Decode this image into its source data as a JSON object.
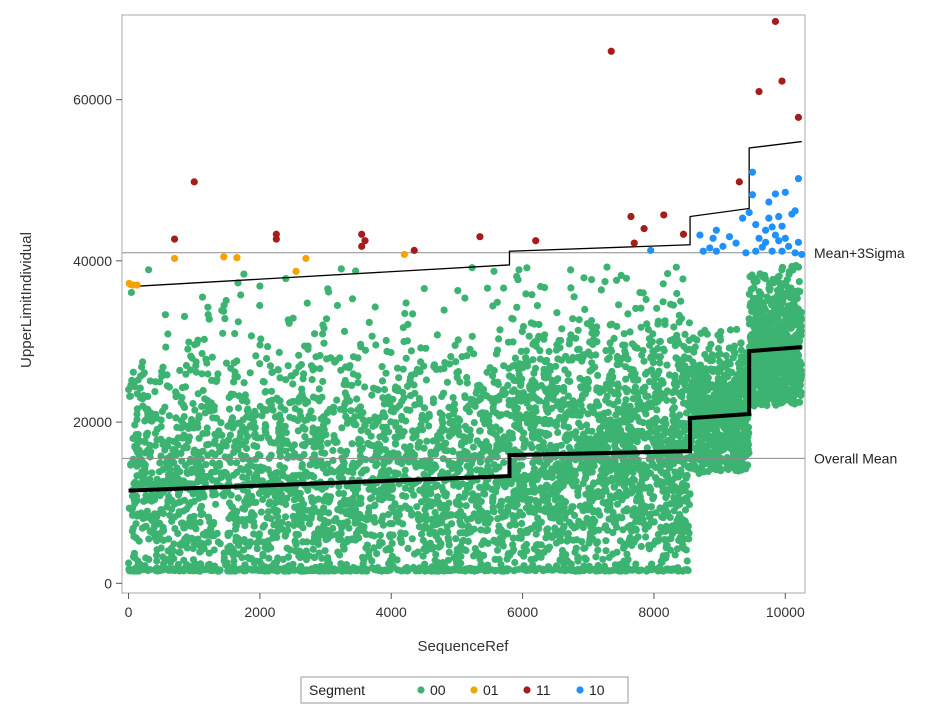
{
  "chart_data": {
    "type": "scatter",
    "xlabel": "SequenceRef",
    "ylabel": "UpperLimitIndividual",
    "xlim": [
      -100,
      10300
    ],
    "ylim": [
      -1200,
      70500
    ],
    "x_ticks": [
      0,
      2000,
      4000,
      6000,
      8000,
      10000
    ],
    "x_tick_labels": [
      "0",
      "2000",
      "4000",
      "6000",
      "8000",
      "10000"
    ],
    "y_ticks": [
      0,
      20000,
      40000,
      60000
    ],
    "y_tick_labels": [
      "0",
      "20000",
      "40000",
      "60000"
    ],
    "grid": false,
    "reference_lines": [
      {
        "label": "Mean+3Sigma",
        "y": 41000
      },
      {
        "label": "Overall Mean",
        "y": 15500
      }
    ],
    "legend": {
      "title": "Segment",
      "placement": "bottom",
      "entries": [
        {
          "name": "00",
          "color": "#3cb371"
        },
        {
          "name": "01",
          "color": "#f5a300"
        },
        {
          "name": "11",
          "color": "#a51c1c"
        },
        {
          "name": "10",
          "color": "#1e90ff"
        }
      ]
    },
    "phases": [
      {
        "x": [
          0,
          5800
        ],
        "mean_start": 11500,
        "mean_end": 13300,
        "upper_start": 36800,
        "upper_end": 39500,
        "y_max": 39500
      },
      {
        "x": [
          5800,
          8550
        ],
        "mean_start": 15900,
        "mean_end": 16400,
        "upper_start": 41200,
        "upper_end": 42000,
        "y_max": 39500
      },
      {
        "x": [
          8550,
          9450
        ],
        "mean_start": 20500,
        "mean_end": 21000,
        "upper_start": 45500,
        "upper_end": 46500,
        "y_max": 40500
      },
      {
        "x": [
          9450,
          10250
        ],
        "mean_start": 28800,
        "mean_end": 29300,
        "upper_start": 54000,
        "upper_end": 54800,
        "y_max": 40000
      }
    ],
    "series": [
      {
        "name": "01",
        "color": "#f5a300",
        "points": [
          [
            10,
            37200
          ],
          [
            70,
            37000
          ],
          [
            130,
            37000
          ],
          [
            700,
            40300
          ],
          [
            1450,
            40500
          ],
          [
            1650,
            40400
          ],
          [
            2550,
            38700
          ],
          [
            2700,
            40300
          ],
          [
            4200,
            40800
          ]
        ]
      },
      {
        "name": "11",
        "color": "#a51c1c",
        "points": [
          [
            700,
            42700
          ],
          [
            1000,
            49800
          ],
          [
            2250,
            43300
          ],
          [
            2250,
            42700
          ],
          [
            3550,
            43300
          ],
          [
            3550,
            41800
          ],
          [
            3600,
            42500
          ],
          [
            4350,
            41300
          ],
          [
            5350,
            43000
          ],
          [
            6200,
            42500
          ],
          [
            7350,
            66000
          ],
          [
            7650,
            45500
          ],
          [
            7700,
            42200
          ],
          [
            7850,
            44000
          ],
          [
            8150,
            45700
          ],
          [
            8450,
            43300
          ],
          [
            9300,
            49800
          ],
          [
            9600,
            61000
          ],
          [
            9850,
            69700
          ],
          [
            9950,
            62300
          ],
          [
            10200,
            57800
          ]
        ]
      },
      {
        "name": "10",
        "color": "#1e90ff",
        "points": [
          [
            7950,
            41300
          ],
          [
            8700,
            43200
          ],
          [
            8750,
            41200
          ],
          [
            8850,
            41600
          ],
          [
            8900,
            42800
          ],
          [
            8950,
            43800
          ],
          [
            8950,
            41200
          ],
          [
            9050,
            41800
          ],
          [
            9150,
            43000
          ],
          [
            9250,
            42200
          ],
          [
            9350,
            45300
          ],
          [
            9400,
            41000
          ],
          [
            9450,
            46000
          ],
          [
            9500,
            51000
          ],
          [
            9500,
            48200
          ],
          [
            9550,
            44500
          ],
          [
            9550,
            41200
          ],
          [
            9600,
            42800
          ],
          [
            9650,
            41700
          ],
          [
            9700,
            43800
          ],
          [
            9700,
            42300
          ],
          [
            9750,
            45300
          ],
          [
            9750,
            47300
          ],
          [
            9800,
            44200
          ],
          [
            9800,
            41200
          ],
          [
            9850,
            48300
          ],
          [
            9850,
            43200
          ],
          [
            9900,
            42500
          ],
          [
            9900,
            45500
          ],
          [
            9950,
            41200
          ],
          [
            9950,
            44300
          ],
          [
            10000,
            48500
          ],
          [
            10000,
            42800
          ],
          [
            10050,
            41800
          ],
          [
            10100,
            45800
          ],
          [
            10150,
            41000
          ],
          [
            10150,
            46200
          ],
          [
            10200,
            50200
          ],
          [
            10200,
            42300
          ],
          [
            10250,
            40800
          ]
        ]
      }
    ],
    "series_00_note_omitted": null
  }
}
